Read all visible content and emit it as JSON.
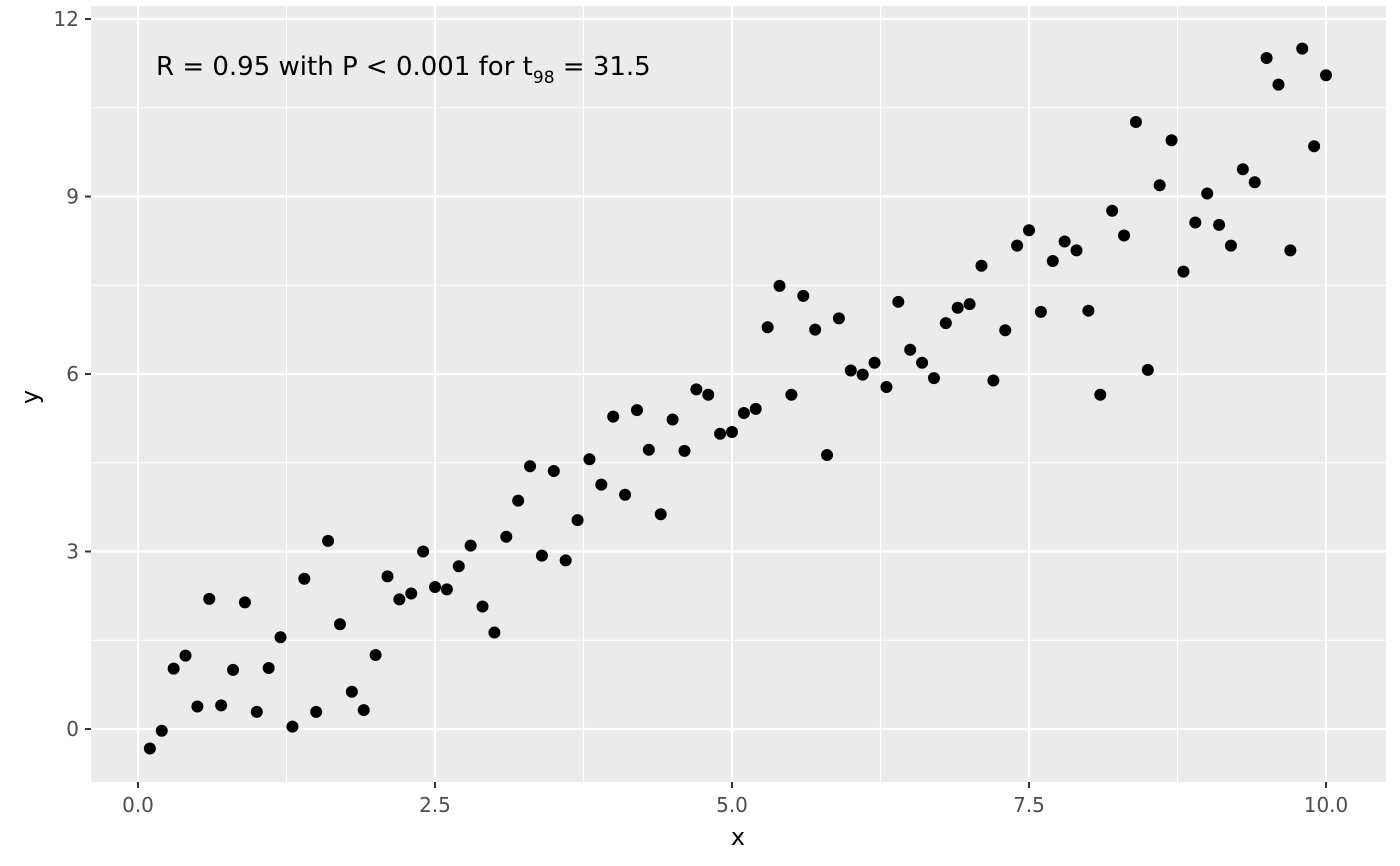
{
  "chart_data": {
    "type": "scatter",
    "title": "",
    "xlabel": "x",
    "ylabel": "y",
    "xlim": [
      -0.2,
      10.2
    ],
    "ylim": [
      -0.9,
      12.2
    ],
    "grid": true,
    "x_ticks": [
      0.0,
      2.5,
      5.0,
      7.5,
      10.0
    ],
    "x_tick_labels": [
      "0.0",
      "2.5",
      "5.0",
      "7.5",
      "10.0"
    ],
    "y_ticks": [
      0,
      3,
      6,
      9,
      12
    ],
    "y_tick_labels": [
      "0",
      "3",
      "6",
      "9",
      "12"
    ],
    "annotation": {
      "main": "R = 0.95 with P < 0.001 for t",
      "subscript": "98",
      "tail": " = 31.5"
    },
    "colors": {
      "panel_background": "#ebebeb",
      "grid": "#ffffff",
      "points": "#000000"
    },
    "series": [
      {
        "x": [
          0.1,
          0.2,
          0.3,
          0.4,
          0.5,
          0.6,
          0.7,
          0.8,
          0.9,
          1.0,
          1.1,
          1.2,
          1.3,
          1.4,
          1.5,
          1.6,
          1.7,
          1.8,
          1.9,
          2.0,
          2.1,
          2.2,
          2.3,
          2.4,
          2.5,
          2.6,
          2.7,
          2.8,
          2.9,
          3.0,
          3.1,
          3.2,
          3.3,
          3.4,
          3.5,
          3.6,
          3.7,
          3.8,
          3.9,
          4.0,
          4.1,
          4.2,
          4.3,
          4.4,
          4.5,
          4.6,
          4.7,
          4.8,
          4.9,
          5.0,
          5.1,
          5.2,
          5.3,
          5.4,
          5.5,
          5.6,
          5.7,
          5.8,
          5.9,
          6.0,
          6.1,
          6.2,
          6.3,
          6.4,
          6.5,
          6.6,
          6.7,
          6.8,
          6.9,
          7.0,
          7.1,
          7.2,
          7.3,
          7.4,
          7.5,
          7.6,
          7.7,
          7.8,
          7.9,
          8.0,
          8.1,
          8.2,
          8.3,
          8.4,
          8.5,
          8.6,
          8.7,
          8.8,
          8.9,
          9.0,
          9.1,
          9.2,
          9.3,
          9.4,
          9.5,
          9.6,
          9.7,
          9.8,
          9.9,
          10.0
        ],
        "y": [
          -0.33,
          -0.03,
          1.02,
          1.24,
          0.38,
          2.2,
          0.4,
          1.0,
          2.14,
          0.29,
          1.03,
          1.55,
          0.04,
          2.54,
          0.29,
          3.18,
          1.77,
          0.63,
          0.32,
          1.25,
          2.58,
          2.19,
          2.29,
          3.0,
          2.4,
          2.36,
          2.75,
          3.1,
          2.07,
          1.63,
          3.25,
          3.86,
          4.44,
          2.93,
          4.36,
          2.85,
          3.53,
          4.56,
          4.13,
          5.28,
          3.96,
          5.39,
          4.72,
          3.63,
          5.23,
          4.7,
          5.74,
          5.65,
          4.99,
          5.02,
          5.34,
          5.41,
          6.79,
          7.49,
          5.65,
          7.32,
          6.75,
          4.63,
          6.94,
          6.06,
          5.99,
          6.19,
          5.78,
          7.22,
          6.41,
          6.19,
          5.93,
          6.86,
          7.12,
          7.18,
          7.83,
          5.89,
          6.74,
          8.17,
          8.43,
          7.05,
          7.91,
          8.24,
          8.09,
          7.07,
          5.65,
          8.76,
          8.34,
          10.26,
          6.07,
          9.19,
          9.95,
          7.73,
          8.56,
          9.05,
          8.52,
          8.17,
          9.46,
          9.24,
          11.34,
          10.89,
          8.09,
          11.5,
          9.85,
          11.05
        ]
      }
    ]
  }
}
